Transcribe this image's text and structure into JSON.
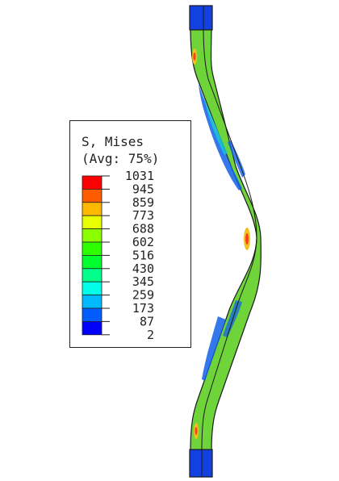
{
  "legend": {
    "title_line1": "S, Mises",
    "title_line2": "(Avg: 75%)",
    "levels": [
      "1031",
      "945",
      "859",
      "773",
      "688",
      "602",
      "516",
      "430",
      "345",
      "259",
      "173",
      "87",
      "2"
    ],
    "band_colors": [
      "#ff0000",
      "#ff5c00",
      "#ffb900",
      "#e8ff00",
      "#8bff00",
      "#2eff00",
      "#00ff2e",
      "#00ff8b",
      "#00ffe8",
      "#00b9ff",
      "#005cff",
      "#0000ff"
    ]
  },
  "model": {
    "colors": {
      "dominant": "#6fd43a",
      "cap": "#1340e0",
      "low": "#1060e8",
      "mid_low": "#18c8d8",
      "high": "#f0c020",
      "peak": "#ff4020",
      "edge": "#1a1a1a"
    }
  }
}
